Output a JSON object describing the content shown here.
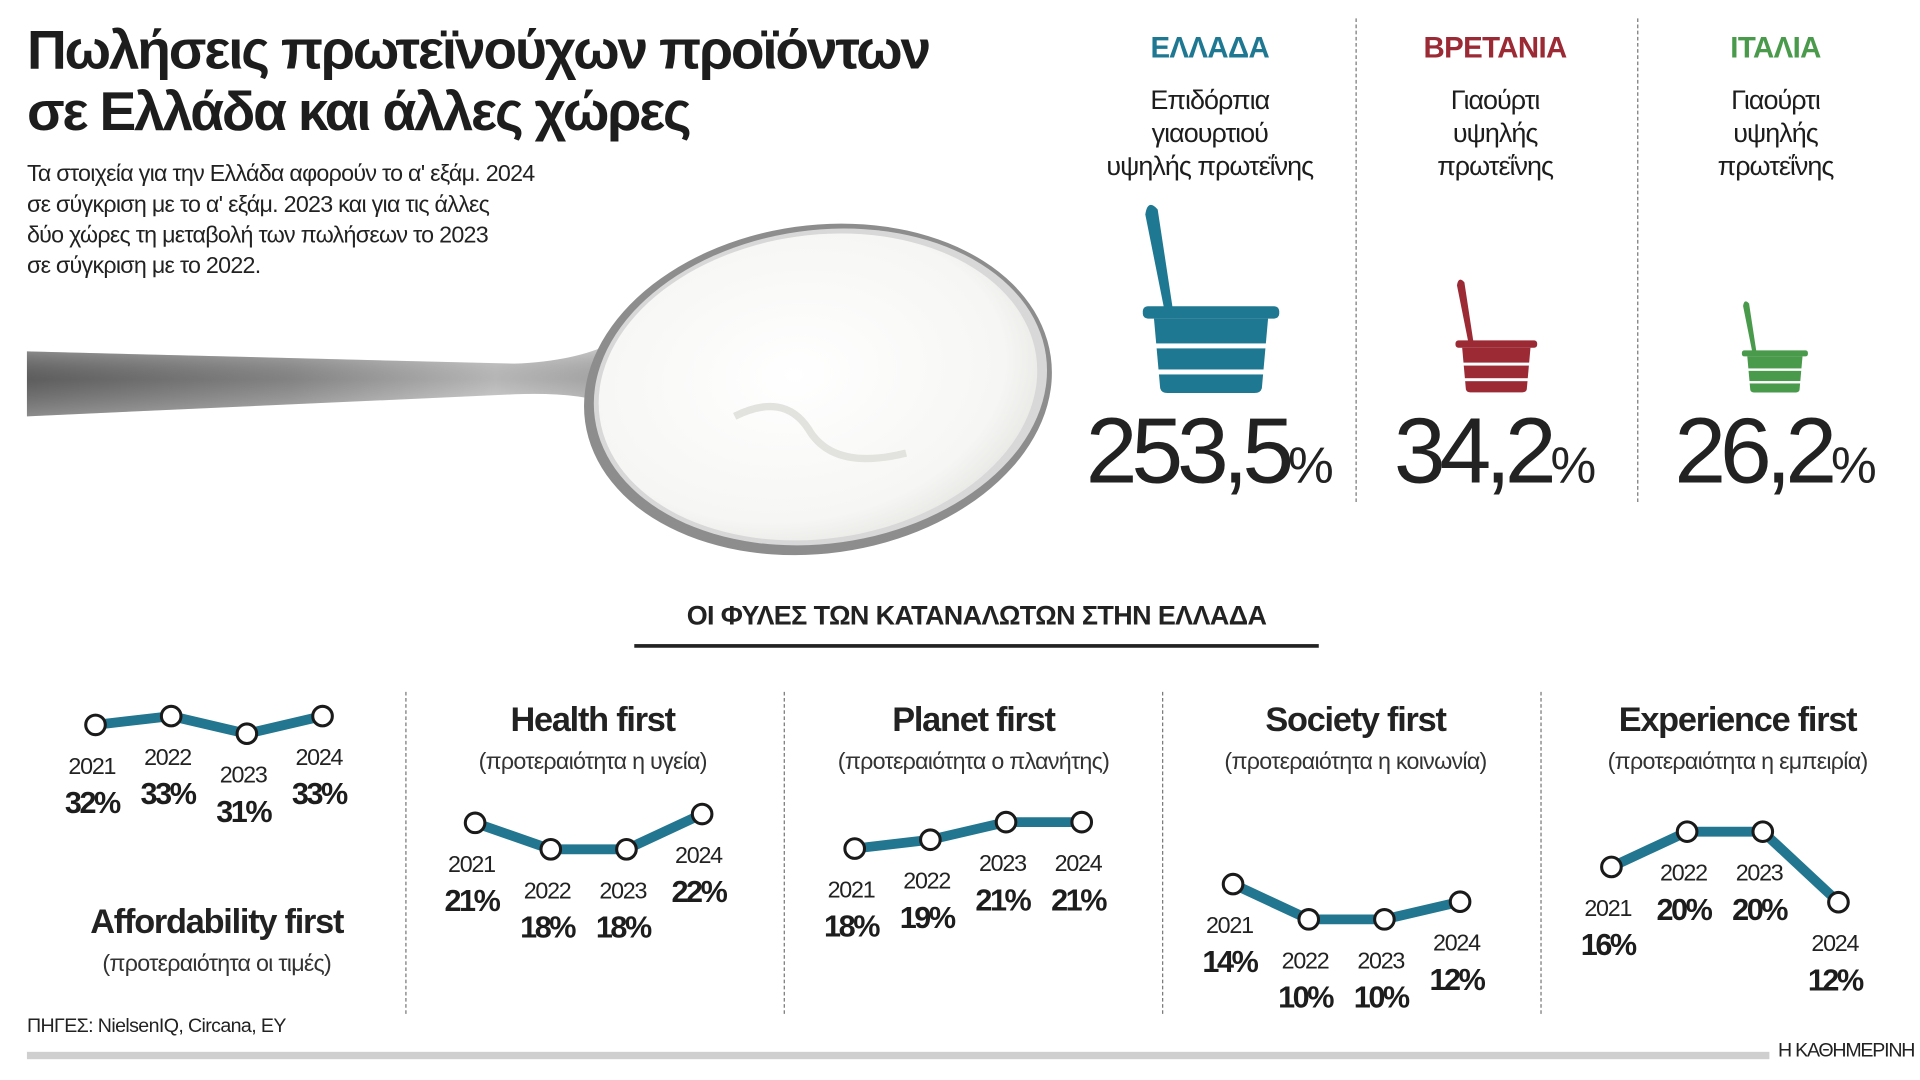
{
  "header": {
    "title_line1": "Πωλήσεις πρωτεϊνούχων προϊόντων",
    "title_line2": "σε Ελλάδα και άλλες χώρες",
    "subtitle_lines": [
      "Τα στοιχεία για την Ελλάδα αφορούν το α' εξάμ. 2024",
      "σε σύγκριση με το α' εξάμ. 2023 και για τις άλλες",
      "δύο χώρες τη μεταβολή των πωλήσεων το 2023",
      "σε σύγκριση με το 2022."
    ]
  },
  "countries": [
    {
      "name": "ΕΛΛΑΔΑ",
      "desc": [
        "Επιδόρπια",
        "γιαουρτιού",
        "υψηλής πρωτεΐνης"
      ],
      "value": "253,5",
      "unit": "%",
      "color": "#1f7891",
      "icon": "yogurt-cup-icon"
    },
    {
      "name": "ΒΡΕΤΑΝΙΑ",
      "desc": [
        "Γιαούρτι",
        "υψηλής",
        "πρωτεΐνης"
      ],
      "value": "34,2",
      "unit": "%",
      "color": "#9b2a35",
      "icon": "yogurt-cup-icon"
    },
    {
      "name": "ΙΤΑΛΙΑ",
      "desc": [
        "Γιαούρτι",
        "υψηλής",
        "πρωτεΐνης"
      ],
      "value": "26,2",
      "unit": "%",
      "color": "#4a9a4c",
      "icon": "yogurt-cup-icon"
    }
  ],
  "section_title": "ΟΙ ΦΥΛΕΣ ΤΩΝ ΚΑΤΑΝΑΛΩΤΩΝ ΣΤΗΝ ΕΛΛΑΔΑ",
  "chart_data": [
    {
      "type": "line",
      "title": "Affordability first",
      "subtitle": "(προτεραιότητα οι τιμές)",
      "x": [
        "2021",
        "2022",
        "2023",
        "2024"
      ],
      "values": [
        32,
        33,
        31,
        33
      ],
      "unit": "%",
      "color": "#23768f"
    },
    {
      "type": "line",
      "title": "Health first",
      "subtitle": "(προτεραιότητα η υγεία)",
      "x": [
        "2021",
        "2022",
        "2023",
        "2024"
      ],
      "values": [
        21,
        18,
        18,
        22
      ],
      "unit": "%",
      "color": "#23768f"
    },
    {
      "type": "line",
      "title": "Planet first",
      "subtitle": "(προτεραιότητα ο πλανήτης)",
      "x": [
        "2021",
        "2022",
        "2023",
        "2024"
      ],
      "values": [
        18,
        19,
        21,
        21
      ],
      "unit": "%",
      "color": "#23768f"
    },
    {
      "type": "line",
      "title": "Society first",
      "subtitle": "(προτεραιότητα η κοινωνία)",
      "x": [
        "2021",
        "2022",
        "2023",
        "2024"
      ],
      "values": [
        14,
        10,
        10,
        12
      ],
      "unit": "%",
      "color": "#23768f"
    },
    {
      "type": "line",
      "title": "Experience first",
      "subtitle": "(προτεραιότητα η εμπειρία)",
      "x": [
        "2021",
        "2022",
        "2023",
        "2024"
      ],
      "values": [
        16,
        20,
        20,
        12
      ],
      "unit": "%",
      "color": "#23768f"
    }
  ],
  "footer": {
    "sources": "ΠΗΓΕΣ: NielsenIQ, Circana, EY",
    "brand": "Η ΚΑΘΗΜΕΡΙΝΗ"
  }
}
